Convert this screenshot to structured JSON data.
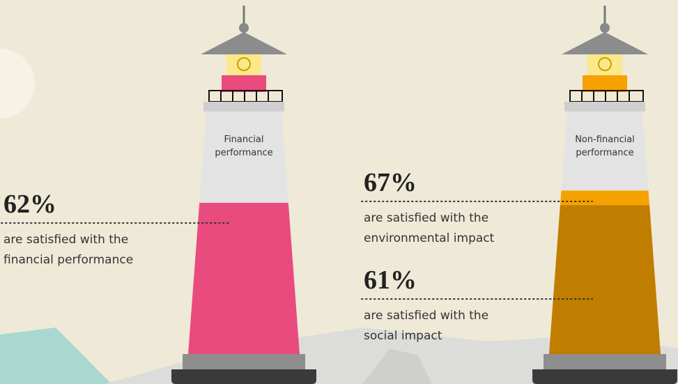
{
  "lighthouses": [
    {
      "label_lines": [
        "Financial",
        "performance"
      ],
      "colors": [
        "#e94b7f"
      ],
      "stats": [
        {
          "value": 62,
          "value_label": "62%",
          "text_lines": [
            "are satisfied with the",
            "financial performance"
          ]
        }
      ]
    },
    {
      "label_lines": [
        "Non-financial",
        "performance"
      ],
      "colors": [
        "#f5a200",
        "#c07d00"
      ],
      "stats": [
        {
          "value": 67,
          "value_label": "67%",
          "text_lines": [
            "are satisfied with the",
            "environmental impact"
          ]
        },
        {
          "value": 61,
          "value_label": "61%",
          "text_lines": [
            "are satisfied with the",
            "social impact"
          ]
        }
      ]
    }
  ]
}
